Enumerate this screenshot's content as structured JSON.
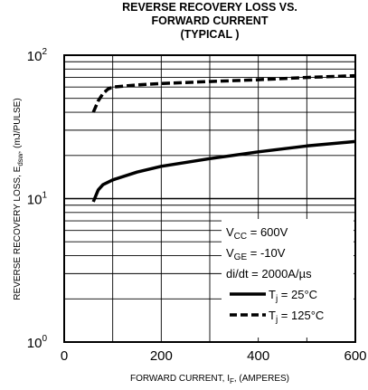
{
  "chart_data": {
    "type": "line",
    "title_lines": [
      "REVERSE RECOVERY LOSS VS.",
      "FORWARD CURRENT",
      "(TYPICAL )"
    ],
    "xlabel": {
      "main": "FORWARD CURRENT, I",
      "sub": "F",
      "tail": ", (AMPERES)"
    },
    "ylabel": {
      "main": "REVERSE RECOVERY LOSS, E",
      "sub": "dsw",
      "tail": ", (mJ/PULSE)"
    },
    "x_scale": "linear",
    "y_scale": "log",
    "xlim": [
      0,
      600
    ],
    "ylim": [
      1,
      100
    ],
    "x_ticks": [
      {
        "value": 0,
        "label": "0"
      },
      {
        "value": 200,
        "label": "200"
      },
      {
        "value": 400,
        "label": "400"
      },
      {
        "value": 600,
        "label": "600"
      }
    ],
    "y_ticks": [
      {
        "value": 1,
        "base": "10",
        "exp": "0"
      },
      {
        "value": 10,
        "base": "10",
        "exp": "1"
      },
      {
        "value": 100,
        "base": "10",
        "exp": "2"
      }
    ],
    "grid": true,
    "legend_position": "bottom-right",
    "conditions": [
      {
        "main": "V",
        "sub": "CC",
        "tail": " = 600V"
      },
      {
        "main": "V",
        "sub": "GE",
        "tail": " = -10V"
      },
      {
        "main": "di/dt = 2000A/µs",
        "sub": "",
        "tail": ""
      }
    ],
    "series": [
      {
        "name": {
          "main": "T",
          "sub": "j",
          "tail": " = 25°C"
        },
        "style": "solid",
        "x": [
          60,
          70,
          80,
          100,
          150,
          200,
          300,
          400,
          500,
          600
        ],
        "y": [
          9.5,
          11.5,
          12.5,
          13.5,
          15.3,
          16.8,
          19.0,
          21.2,
          23.3,
          25.0
        ]
      },
      {
        "name": {
          "main": "T",
          "sub": "j",
          "tail": " = 125°C"
        },
        "style": "dashed",
        "x": [
          60,
          70,
          80,
          90,
          100,
          150,
          200,
          300,
          400,
          500,
          600
        ],
        "y": [
          40,
          48,
          54,
          58,
          60,
          62,
          63.5,
          65.5,
          67.5,
          70,
          72
        ]
      }
    ]
  }
}
